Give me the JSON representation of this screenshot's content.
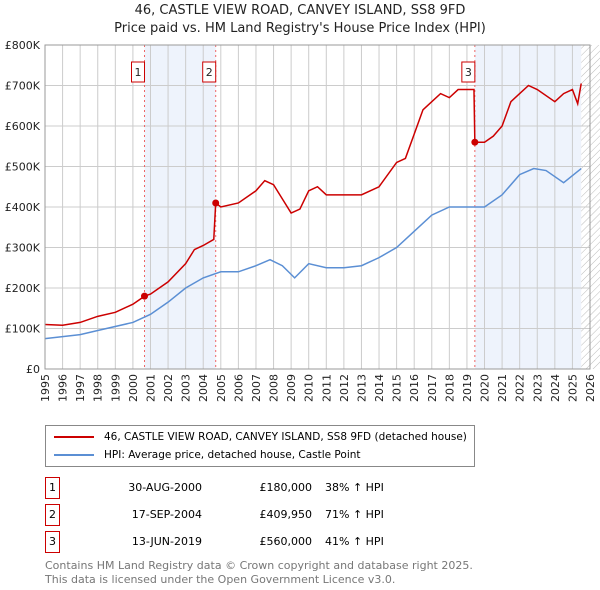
{
  "chart_data": {
    "type": "line",
    "title": "46, CASTLE VIEW ROAD, CANVEY ISLAND, SS8 9FD",
    "subtitle": "Price paid vs. HM Land Registry's House Price Index (HPI)",
    "xlim": [
      1995,
      2026
    ],
    "ylim": [
      0,
      800000
    ],
    "x_ticks": [
      "1995",
      "1996",
      "1997",
      "1998",
      "1999",
      "2000",
      "2001",
      "2002",
      "2003",
      "2004",
      "2005",
      "2006",
      "2007",
      "2008",
      "2009",
      "2010",
      "2011",
      "2012",
      "2013",
      "2014",
      "2015",
      "2016",
      "2017",
      "2018",
      "2019",
      "2020",
      "2021",
      "2022",
      "2023",
      "2024",
      "2025",
      "2026"
    ],
    "y_ticks": [
      {
        "v": 0,
        "label": "£0"
      },
      {
        "v": 100000,
        "label": "£100K"
      },
      {
        "v": 200000,
        "label": "£200K"
      },
      {
        "v": 300000,
        "label": "£300K"
      },
      {
        "v": 400000,
        "label": "£400K"
      },
      {
        "v": 500000,
        "label": "£500K"
      },
      {
        "v": 600000,
        "label": "£600K"
      },
      {
        "v": 700000,
        "label": "£700K"
      },
      {
        "v": 800000,
        "label": "£800K"
      }
    ],
    "grid": true,
    "legend_position": "below",
    "series": [
      {
        "name": "46, CASTLE VIEW ROAD, CANVEY ISLAND, SS8 9FD (detached house)",
        "color": "#cc0000",
        "x": [
          1995,
          1996,
          1997,
          1998,
          1999,
          2000,
          2000.67,
          2001,
          2002,
          2003,
          2003.5,
          2004,
          2004.6,
          2004.71,
          2005,
          2006,
          2007,
          2007.5,
          2008,
          2008.5,
          2009,
          2009.5,
          2010,
          2010.5,
          2011,
          2012,
          2013,
          2014,
          2015,
          2015.5,
          2016,
          2016.5,
          2017,
          2017.5,
          2018,
          2018.5,
          2019.4,
          2019.45,
          2020,
          2020.5,
          2021,
          2021.5,
          2022,
          2022.5,
          2023,
          2024,
          2024.5,
          2025,
          2025.3,
          2025.5
        ],
        "y": [
          110000,
          108000,
          115000,
          130000,
          140000,
          160000,
          180000,
          185000,
          215000,
          260000,
          295000,
          305000,
          320000,
          409950,
          400000,
          410000,
          440000,
          465000,
          455000,
          420000,
          385000,
          395000,
          440000,
          450000,
          430000,
          430000,
          430000,
          450000,
          510000,
          520000,
          580000,
          640000,
          660000,
          680000,
          670000,
          690000,
          690000,
          560000,
          560000,
          575000,
          600000,
          660000,
          680000,
          700000,
          690000,
          660000,
          680000,
          690000,
          655000,
          705000
        ]
      },
      {
        "name": "HPI: Average price, detached house, Castle Point",
        "color": "#5b8fd4",
        "x": [
          1995,
          1997,
          1998,
          2000,
          2001,
          2002,
          2003,
          2004,
          2005,
          2006,
          2007,
          2007.8,
          2008.5,
          2009.2,
          2010,
          2011,
          2012,
          2013,
          2014,
          2015,
          2016,
          2017,
          2018,
          2019,
          2020,
          2021,
          2022,
          2022.8,
          2023.5,
          2024.5,
          2025.5
        ],
        "y": [
          75000,
          85000,
          95000,
          115000,
          135000,
          165000,
          200000,
          225000,
          240000,
          240000,
          255000,
          270000,
          255000,
          225000,
          260000,
          250000,
          250000,
          255000,
          275000,
          300000,
          340000,
          380000,
          400000,
          400000,
          400000,
          430000,
          480000,
          495000,
          490000,
          460000,
          495000
        ]
      }
    ],
    "sales": [
      {
        "id": "1",
        "date": "30-AUG-2000",
        "price": "£180,000",
        "hpi": "38% ↑ HPI",
        "x": 2000.66,
        "y": 180000
      },
      {
        "id": "2",
        "date": "17-SEP-2004",
        "price": "£409,950",
        "hpi": "71% ↑ HPI",
        "x": 2004.71,
        "y": 409950
      },
      {
        "id": "3",
        "date": "13-JUN-2019",
        "price": "£560,000",
        "hpi": "41% ↑ HPI",
        "x": 2019.45,
        "y": 560000
      }
    ],
    "hatched_from": 2025.5
  },
  "footer": {
    "line1": "Contains HM Land Registry data © Crown copyright and database right 2025.",
    "line2": "This data is licensed under the Open Government Licence v3.0."
  }
}
